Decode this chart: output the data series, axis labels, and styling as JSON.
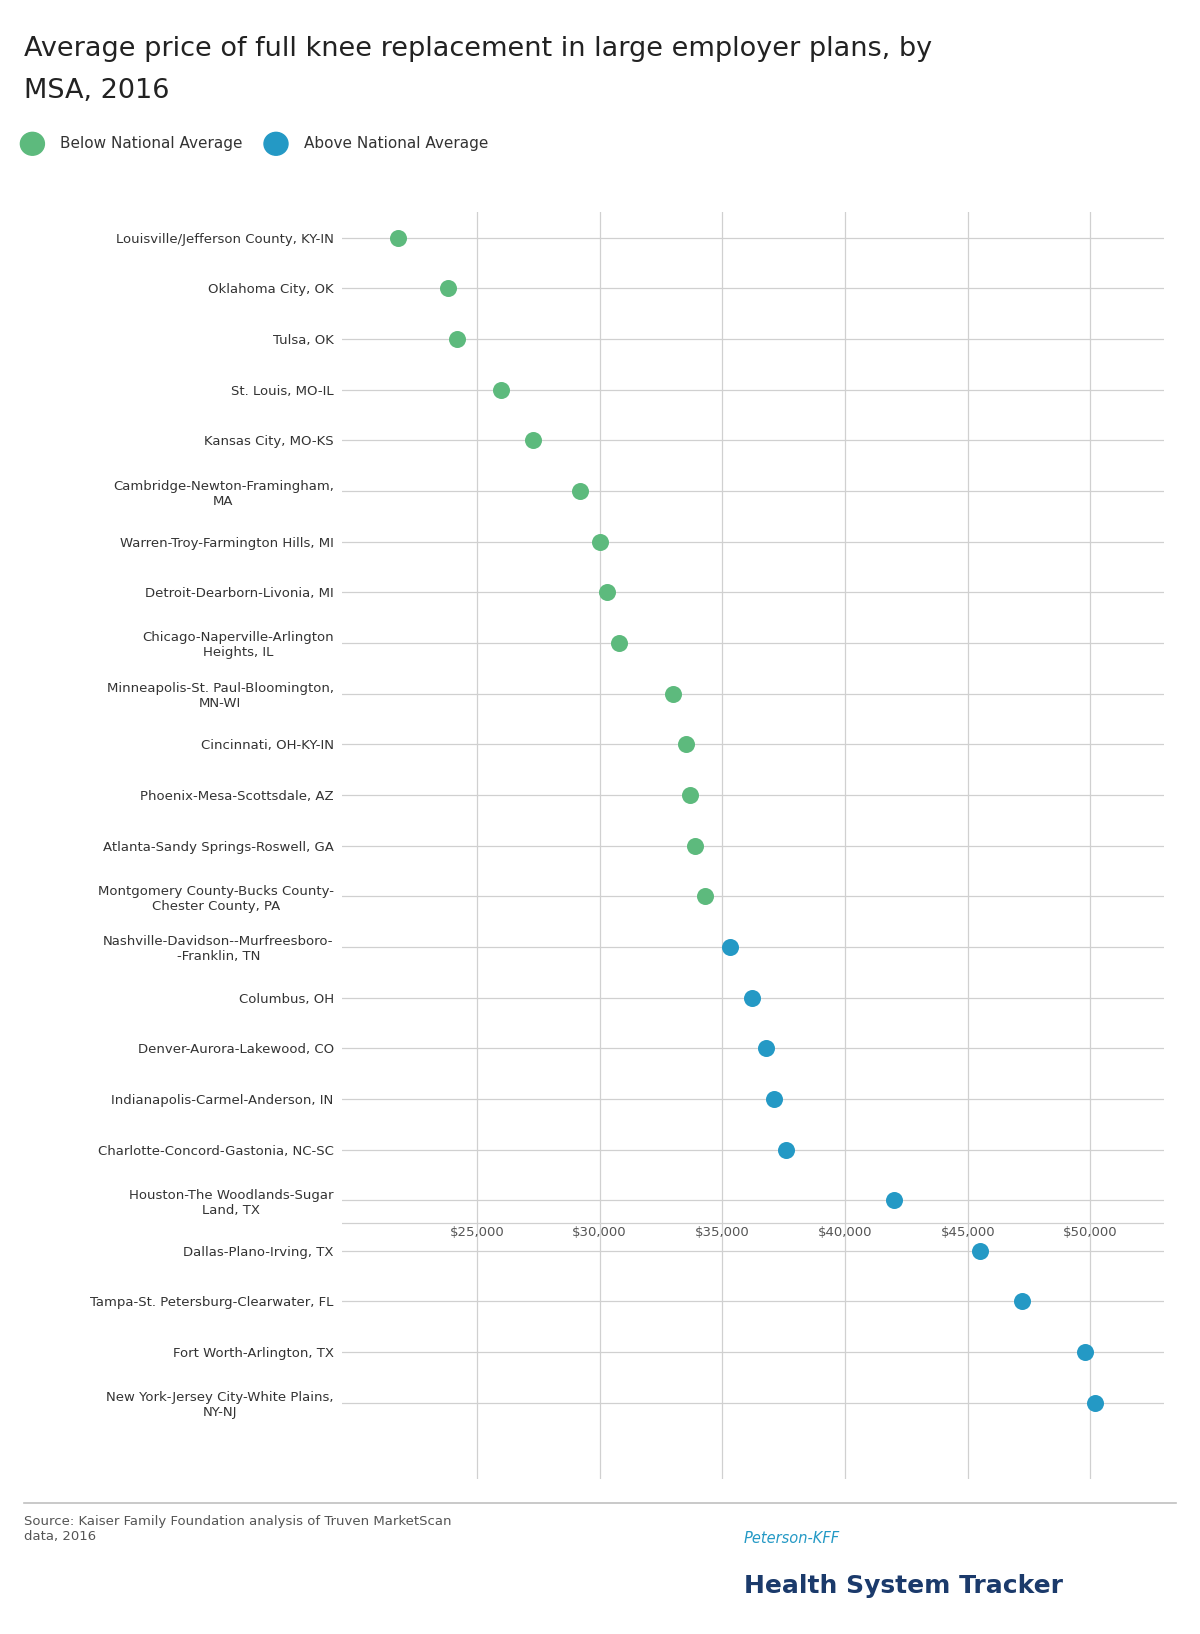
{
  "title_line1": "Average price of full knee replacement in large employer plans, by",
  "title_line2": "MSA, 2016",
  "categories": [
    "Louisville/Jefferson County, KY-IN",
    "Oklahoma City, OK",
    "Tulsa, OK",
    "St. Louis, MO-IL",
    "Kansas City, MO-KS",
    "Cambridge-Newton-Framingham,\nMA",
    "Warren-Troy-Farmington Hills, MI",
    "Detroit-Dearborn-Livonia, MI",
    "Chicago-Naperville-Arlington\nHeights, IL",
    "Minneapolis-St. Paul-Bloomington,\nMN-WI",
    "Cincinnati, OH-KY-IN",
    "Phoenix-Mesa-Scottsdale, AZ",
    "Atlanta-Sandy Springs-Roswell, GA",
    "Montgomery County-Bucks County-\nChester County, PA",
    "Nashville-Davidson--Murfreesboro-\n-Franklin, TN",
    "Columbus, OH",
    "Denver-Aurora-Lakewood, CO",
    "Indianapolis-Carmel-Anderson, IN",
    "Charlotte-Concord-Gastonia, NC-SC",
    "Houston-The Woodlands-Sugar\nLand, TX",
    "Dallas-Plano-Irving, TX",
    "Tampa-St. Petersburg-Clearwater, FL",
    "Fort Worth-Arlington, TX",
    "New York-Jersey City-White Plains,\nNY-NJ"
  ],
  "values": [
    21800,
    23800,
    24200,
    26000,
    27300,
    29200,
    30000,
    30300,
    30800,
    33000,
    33500,
    33700,
    33900,
    34300,
    35300,
    36200,
    36800,
    37100,
    37600,
    42000,
    45500,
    47200,
    49800,
    50200
  ],
  "colors": [
    "#5dba7d",
    "#5dba7d",
    "#5dba7d",
    "#5dba7d",
    "#5dba7d",
    "#5dba7d",
    "#5dba7d",
    "#5dba7d",
    "#5dba7d",
    "#5dba7d",
    "#5dba7d",
    "#5dba7d",
    "#5dba7d",
    "#5dba7d",
    "#2499c5",
    "#2499c5",
    "#2499c5",
    "#2499c5",
    "#2499c5",
    "#2499c5",
    "#2499c5",
    "#2499c5",
    "#2499c5",
    "#2499c5"
  ],
  "green_color": "#5dba7d",
  "blue_color": "#2499c5",
  "dark_blue": "#1b3a6b",
  "peterson_blue": "#2499c5",
  "xlim_low": 19500,
  "xlim_high": 53000,
  "xticks": [
    25000,
    30000,
    35000,
    40000,
    45000,
    50000
  ],
  "source_text": "Source: Kaiser Family Foundation analysis of Truven MarketScan\ndata, 2016",
  "logo_line1": "Peterson-KFF",
  "logo_line2": "Health System Tracker",
  "bg_color": "#ffffff",
  "grid_color": "#d0d0d0",
  "marker_size": 150,
  "xaxis_between_row": 19.5
}
